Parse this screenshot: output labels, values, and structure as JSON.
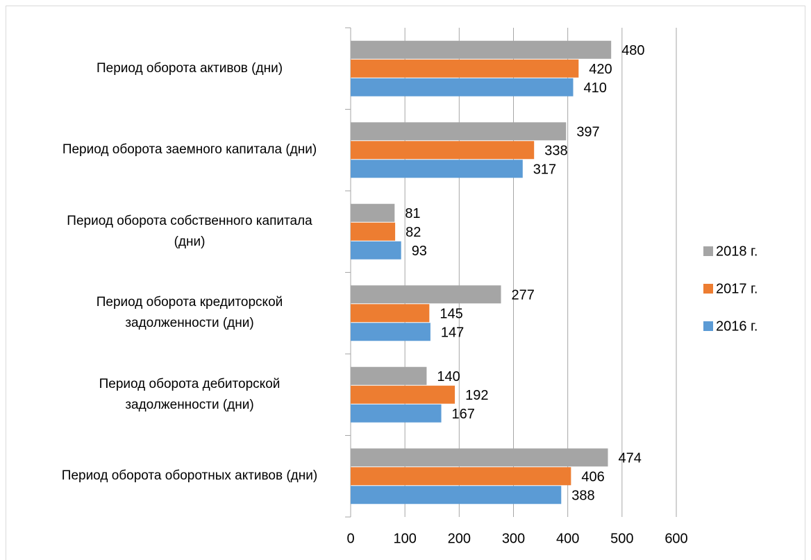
{
  "chart_data": {
    "type": "barh",
    "categories": [
      "Период оборота активов (дни)",
      "Период оборота заемного капитала (дни)",
      "Период оборота собственного капитала (дни)",
      "Период оборота кредиторской задолженности (дни)",
      "Период оборота дебиторской задолженности (дни)",
      "Период оборота оборотных активов (дни)"
    ],
    "series": [
      {
        "name": "2018 г.",
        "color": "#a5a5a5",
        "values": [
          480,
          397,
          81,
          277,
          140,
          474
        ]
      },
      {
        "name": "2017 г.",
        "color": "#ed7d31",
        "values": [
          420,
          338,
          82,
          145,
          192,
          406
        ]
      },
      {
        "name": "2016 г.",
        "color": "#5b9bd5",
        "values": [
          410,
          317,
          93,
          147,
          167,
          388
        ]
      }
    ],
    "xlim": [
      0,
      600
    ],
    "xticks": [
      0,
      100,
      200,
      300,
      400,
      500,
      600
    ],
    "grid": true,
    "legend": "right"
  }
}
